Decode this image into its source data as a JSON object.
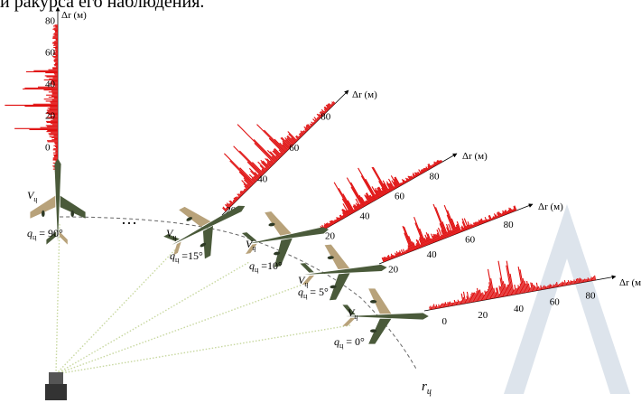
{
  "header_fragment": "и ракурса его наблюдения.",
  "axes": [
    {
      "label": "Δr (м)",
      "ticks": [
        "80",
        "60",
        "40",
        "20",
        "0"
      ]
    },
    {
      "label": "Δr (м)",
      "ticks": [
        "80",
        "60",
        "40",
        "20"
      ]
    },
    {
      "label": "Δr (м)",
      "ticks": [
        "80",
        "60",
        "40",
        "20"
      ]
    },
    {
      "label": "Δr (м)",
      "ticks": [
        "80",
        "60",
        "40",
        "20"
      ]
    },
    {
      "label": "Δr (м",
      "ticks": [
        "80",
        "60",
        "40",
        "20",
        "0"
      ]
    }
  ],
  "aircraft": [
    {
      "velocity": "V",
      "velocity_sub": "ц",
      "angle": "q",
      "angle_sub": "ц",
      "angle_value": "= 90°"
    },
    {
      "velocity": "V",
      "velocity_sub": "ц",
      "angle": "q",
      "angle_sub": "ц",
      "angle_value": "=15°"
    },
    {
      "velocity": "V",
      "velocity_sub": "ц",
      "angle": "q",
      "angle_sub": "ц",
      "angle_value": "=10°"
    },
    {
      "velocity": "V",
      "velocity_sub": "ц",
      "angle": "q",
      "angle_sub": "ц",
      "angle_value": "= 5°"
    },
    {
      "velocity": "V",
      "velocity_sub": "ц",
      "angle": "q",
      "angle_sub": "ц",
      "angle_value": "= 0°"
    }
  ],
  "ellipsis": "…",
  "range_label": "r",
  "range_sub": "ц",
  "colors": {
    "profile": "#e01010",
    "plane_body": "#4a5a3a",
    "plane_camo": "#b8a27a",
    "beam": "#c8d8a0",
    "watermark": "#dde4ec"
  },
  "icons": [
    "radar-station-icon",
    "aircraft-icon"
  ]
}
